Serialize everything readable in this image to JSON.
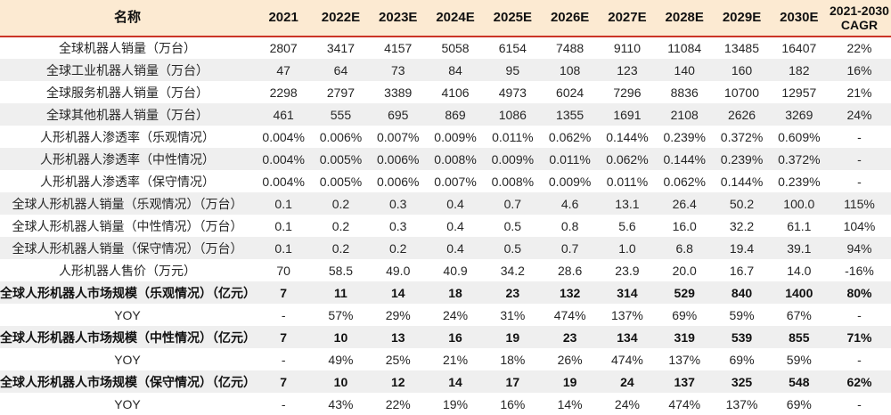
{
  "table": {
    "name_header": "名称",
    "year_columns": [
      "2021",
      "2022E",
      "2023E",
      "2024E",
      "2025E",
      "2026E",
      "2027E",
      "2028E",
      "2029E",
      "2030E"
    ],
    "cagr_header": {
      "line1": "2021-2030",
      "line2": "CAGR"
    },
    "colors": {
      "header_background": "#FCEAD2",
      "header_underline_red": "#CB3527",
      "row_stripe_gray": "#EFEFEF",
      "text": "#262626"
    },
    "rows": [
      {
        "label": "全球机器人销量（万台）",
        "bold": false,
        "values": [
          "2807",
          "3417",
          "4157",
          "5058",
          "6154",
          "7488",
          "9110",
          "11084",
          "13485",
          "16407"
        ],
        "cagr": "22%"
      },
      {
        "label": "全球工业机器人销量（万台）",
        "bold": false,
        "values": [
          "47",
          "64",
          "73",
          "84",
          "95",
          "108",
          "123",
          "140",
          "160",
          "182"
        ],
        "cagr": "16%"
      },
      {
        "label": "全球服务机器人销量（万台）",
        "bold": false,
        "values": [
          "2298",
          "2797",
          "3389",
          "4106",
          "4973",
          "6024",
          "7296",
          "8836",
          "10700",
          "12957"
        ],
        "cagr": "21%"
      },
      {
        "label": "全球其他机器人销量（万台）",
        "bold": false,
        "values": [
          "461",
          "555",
          "695",
          "869",
          "1086",
          "1355",
          "1691",
          "2108",
          "2626",
          "3269"
        ],
        "cagr": "24%"
      },
      {
        "label": "人形机器人渗透率（乐观情况）",
        "bold": false,
        "values": [
          "0.004%",
          "0.006%",
          "0.007%",
          "0.009%",
          "0.011%",
          "0.062%",
          "0.144%",
          "0.239%",
          "0.372%",
          "0.609%"
        ],
        "cagr": "-"
      },
      {
        "label": "人形机器人渗透率（中性情况）",
        "bold": false,
        "values": [
          "0.004%",
          "0.005%",
          "0.006%",
          "0.008%",
          "0.009%",
          "0.011%",
          "0.062%",
          "0.144%",
          "0.239%",
          "0.372%"
        ],
        "cagr": "-"
      },
      {
        "label": "人形机器人渗透率（保守情况）",
        "bold": false,
        "values": [
          "0.004%",
          "0.005%",
          "0.006%",
          "0.007%",
          "0.008%",
          "0.009%",
          "0.011%",
          "0.062%",
          "0.144%",
          "0.239%"
        ],
        "cagr": "-"
      },
      {
        "label": "全球人形机器人销量（乐观情况）（万台）",
        "bold": false,
        "values": [
          "0.1",
          "0.2",
          "0.3",
          "0.4",
          "0.7",
          "4.6",
          "13.1",
          "26.4",
          "50.2",
          "100.0"
        ],
        "cagr": "115%"
      },
      {
        "label": "全球人形机器人销量（中性情况）（万台）",
        "bold": false,
        "values": [
          "0.1",
          "0.2",
          "0.3",
          "0.4",
          "0.5",
          "0.8",
          "5.6",
          "16.0",
          "32.2",
          "61.1"
        ],
        "cagr": "104%"
      },
      {
        "label": "全球人形机器人销量（保守情况）（万台）",
        "bold": false,
        "values": [
          "0.1",
          "0.2",
          "0.2",
          "0.4",
          "0.5",
          "0.7",
          "1.0",
          "6.8",
          "19.4",
          "39.1"
        ],
        "cagr": "94%"
      },
      {
        "label": "人形机器人售价（万元）",
        "bold": false,
        "values": [
          "70",
          "58.5",
          "49.0",
          "40.9",
          "34.2",
          "28.6",
          "23.9",
          "20.0",
          "16.7",
          "14.0"
        ],
        "cagr": "-16%"
      },
      {
        "label": "全球人形机器人市场规模（乐观情况）（亿元）",
        "bold": true,
        "values": [
          "7",
          "11",
          "14",
          "18",
          "23",
          "132",
          "314",
          "529",
          "840",
          "1400"
        ],
        "cagr": "80%"
      },
      {
        "label": "YOY",
        "bold": false,
        "values": [
          "-",
          "57%",
          "29%",
          "24%",
          "31%",
          "474%",
          "137%",
          "69%",
          "59%",
          "67%"
        ],
        "cagr": "-"
      },
      {
        "label": "全球人形机器人市场规模（中性情况）（亿元）",
        "bold": true,
        "values": [
          "7",
          "10",
          "13",
          "16",
          "19",
          "23",
          "134",
          "319",
          "539",
          "855"
        ],
        "cagr": "71%"
      },
      {
        "label": "YOY",
        "bold": false,
        "values": [
          "-",
          "49%",
          "25%",
          "21%",
          "18%",
          "26%",
          "474%",
          "137%",
          "69%",
          "59%"
        ],
        "cagr": "-"
      },
      {
        "label": "全球人形机器人市场规模（保守情况）（亿元）",
        "bold": true,
        "values": [
          "7",
          "10",
          "12",
          "14",
          "17",
          "19",
          "24",
          "137",
          "325",
          "548"
        ],
        "cagr": "62%"
      },
      {
        "label": "YOY",
        "bold": false,
        "values": [
          "-",
          "43%",
          "22%",
          "19%",
          "16%",
          "14%",
          "24%",
          "474%",
          "137%",
          "69%"
        ],
        "cagr": "-"
      }
    ]
  }
}
